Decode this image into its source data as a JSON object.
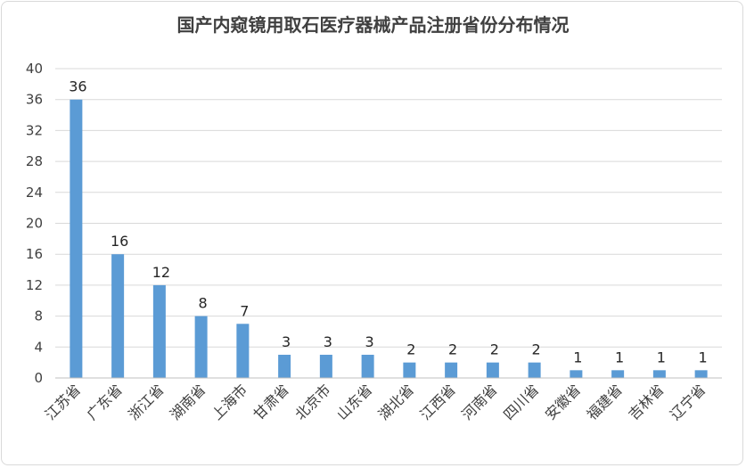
{
  "chart_data": {
    "type": "bar",
    "title": "国产内窥镜用取石医疗器械产品注册省份分布情况",
    "categories": [
      "江苏省",
      "广东省",
      "浙江省",
      "湖南省",
      "上海市",
      "甘肃省",
      "北京市",
      "山东省",
      "湖北省",
      "江西省",
      "河南省",
      "四川省",
      "安徽省",
      "福建省",
      "吉林省",
      "辽宁省"
    ],
    "values": [
      36,
      16,
      12,
      8,
      7,
      3,
      3,
      3,
      2,
      2,
      2,
      2,
      1,
      1,
      1,
      1
    ],
    "ylim": [
      0,
      40
    ],
    "yticks": [
      0,
      4,
      8,
      12,
      16,
      20,
      24,
      28,
      32,
      36,
      40
    ],
    "xlabel": "",
    "ylabel": "",
    "grid": true,
    "legend": "none",
    "bar_color": "#5b9bd5"
  }
}
